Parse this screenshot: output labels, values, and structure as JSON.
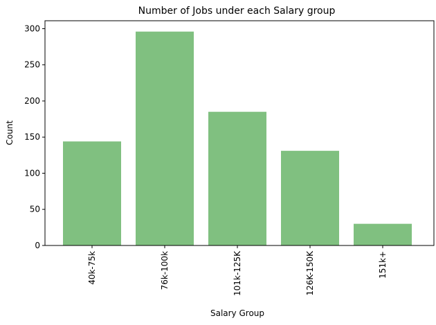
{
  "chart_data": {
    "type": "bar",
    "title": "Number of Jobs under each Salary group",
    "xlabel": "Salary Group",
    "ylabel": "Count",
    "categories": [
      "40k-75k",
      "76k-100k",
      "101k-125K",
      "126K-150K",
      "151k+"
    ],
    "values": [
      144,
      296,
      185,
      131,
      30
    ],
    "ylim": [
      0,
      311
    ],
    "yticks": [
      0,
      50,
      100,
      150,
      200,
      250,
      300
    ],
    "bar_color": "#80c080",
    "grid": false
  }
}
